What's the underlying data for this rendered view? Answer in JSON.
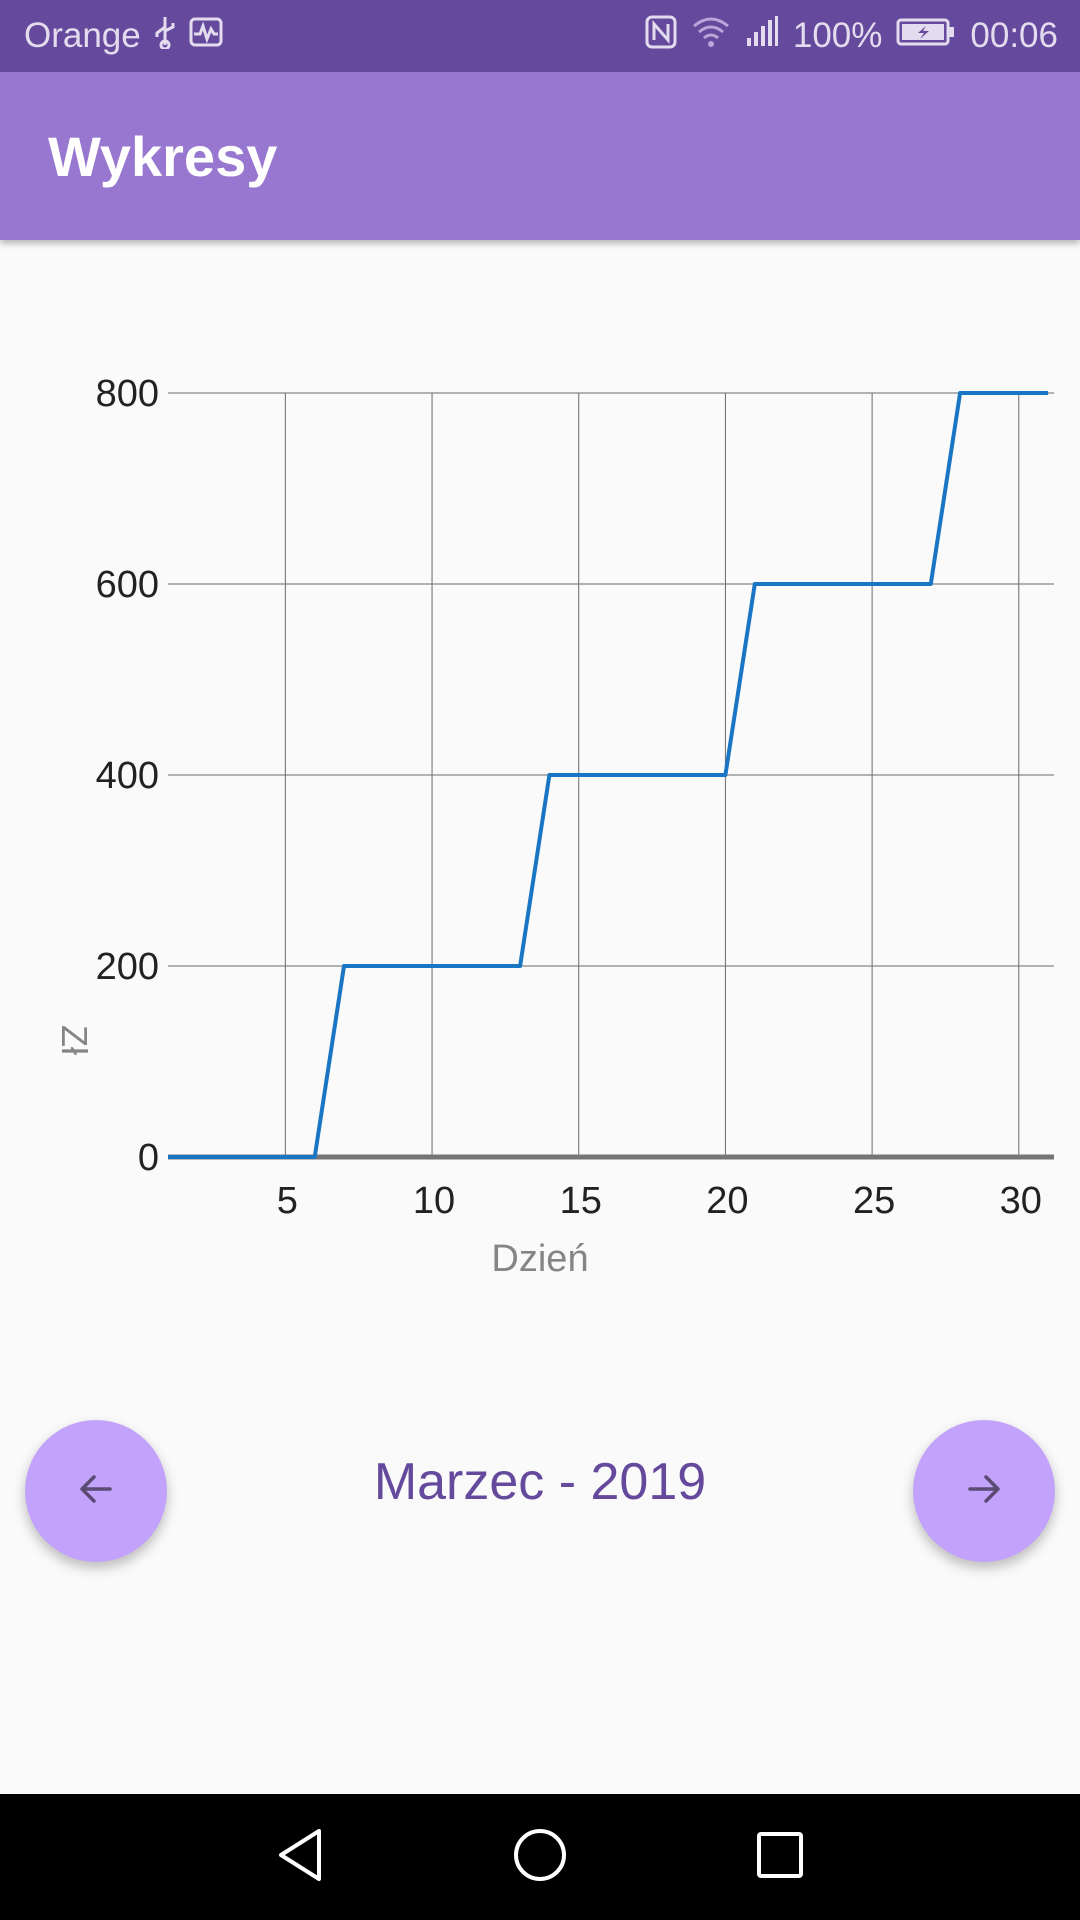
{
  "status_bar": {
    "carrier": "Orange",
    "battery": "100%",
    "time": "00:06",
    "icons": [
      "usb-icon",
      "activity-monitor-icon",
      "nfc-icon",
      "wifi-icon",
      "signal-icon",
      "battery-charging-icon"
    ]
  },
  "app_bar": {
    "title": "Wykresy"
  },
  "chart_data": {
    "type": "line",
    "title": "",
    "xlabel": "Dzień",
    "ylabel": "Zł",
    "x_ticks": [
      5,
      10,
      15,
      20,
      25,
      30
    ],
    "y_ticks": [
      0,
      200,
      400,
      600,
      800
    ],
    "xlim": [
      1,
      31.2
    ],
    "ylim": [
      0,
      800
    ],
    "grid": true,
    "series": [
      {
        "color": "#1976c4",
        "x": [
          1,
          6,
          7,
          13,
          14,
          20,
          21,
          27,
          28,
          31
        ],
        "y": [
          0,
          0,
          200,
          200,
          400,
          400,
          600,
          600,
          800,
          800
        ]
      }
    ]
  },
  "navigation": {
    "period": "Marzec - 2019",
    "prev_icon": "arrow-left-icon",
    "next_icon": "arrow-right-icon"
  },
  "system_nav": {
    "icons": [
      "back-icon",
      "home-icon",
      "recents-icon"
    ]
  },
  "colors": {
    "status_bar": "#65499c",
    "app_bar": "#9777cf",
    "fab": "#c3a2fb",
    "period_text": "#65499c",
    "line": "#1976c4"
  }
}
